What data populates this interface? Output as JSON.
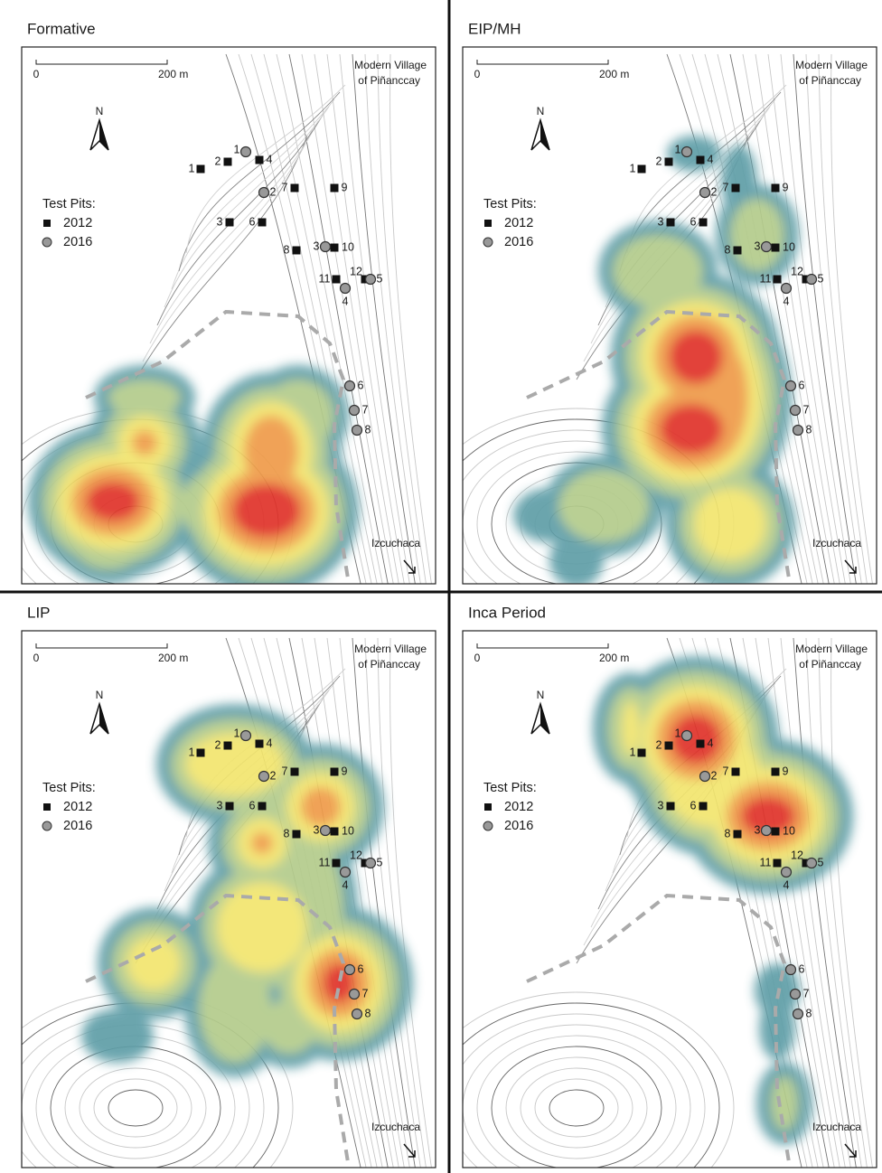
{
  "panels": [
    {
      "title": "Formative"
    },
    {
      "title": "EIP/MH"
    },
    {
      "title": "LIP"
    },
    {
      "title": "Inca Period"
    }
  ],
  "scale": {
    "start": "0",
    "end": "200 m"
  },
  "north": "N",
  "village": [
    "Modern Village",
    "of Piñanccay"
  ],
  "destination": "Izcuchaca",
  "legend": {
    "title": "Test Pits:",
    "items": [
      "2012",
      "2016"
    ]
  },
  "pits": {
    "pits_2012": [
      "1",
      "2",
      "4",
      "7",
      "9",
      "3",
      "6",
      "8",
      "10",
      "11",
      "12"
    ],
    "pits_2016": [
      "1",
      "2",
      "3",
      "4",
      "5",
      "6",
      "7",
      "8"
    ]
  }
}
